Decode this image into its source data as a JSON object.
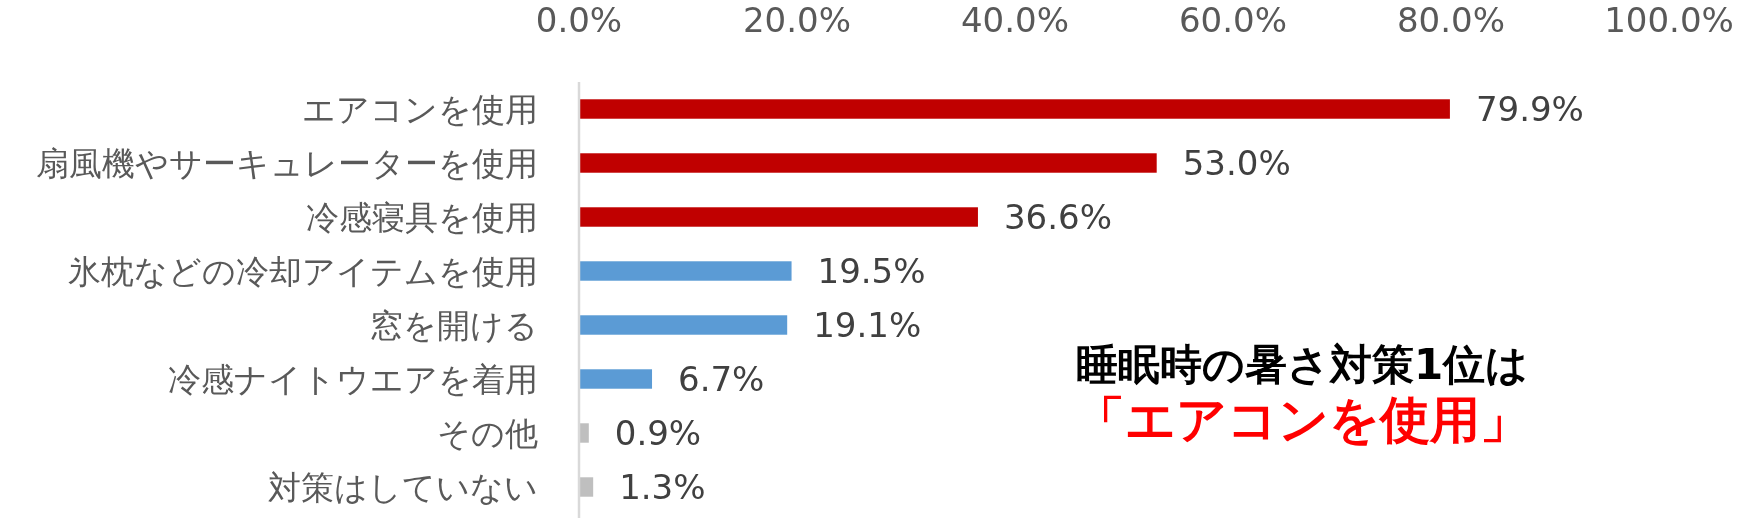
{
  "chart_data": {
    "type": "bar",
    "orientation": "horizontal",
    "categories": [
      "エアコンを使用",
      "扇風機やサーキュレーターを使用",
      "冷感寝具を使用",
      "氷枕などの冷却アイテムを使用",
      "窓を開ける",
      "冷感ナイトウエアを着用",
      "その他",
      "対策はしていない"
    ],
    "values": [
      79.9,
      53.0,
      36.6,
      19.5,
      19.1,
      6.7,
      0.9,
      1.3
    ],
    "colors": [
      "#c00000",
      "#c00000",
      "#c00000",
      "#5b9bd5",
      "#5b9bd5",
      "#5b9bd5",
      "#bfbfbf",
      "#bfbfbf"
    ],
    "value_labels": [
      "79.9%",
      "53.0%",
      "36.6%",
      "19.5%",
      "19.1%",
      "6.7%",
      "0.9%",
      "1.3%"
    ],
    "xlim": [
      0,
      100
    ],
    "xticks": [
      {
        "value": 0,
        "label": "0.0%"
      },
      {
        "value": 20,
        "label": "20.0%"
      },
      {
        "value": 40,
        "label": "40.0%"
      },
      {
        "value": 60,
        "label": "60.0%"
      },
      {
        "value": 80,
        "label": "80.0%"
      },
      {
        "value": 100,
        "label": "100.0%"
      }
    ],
    "grid": false,
    "annotations": [
      "睡眠時の暑さ対策1位は",
      "「エアコンを使用」"
    ]
  }
}
